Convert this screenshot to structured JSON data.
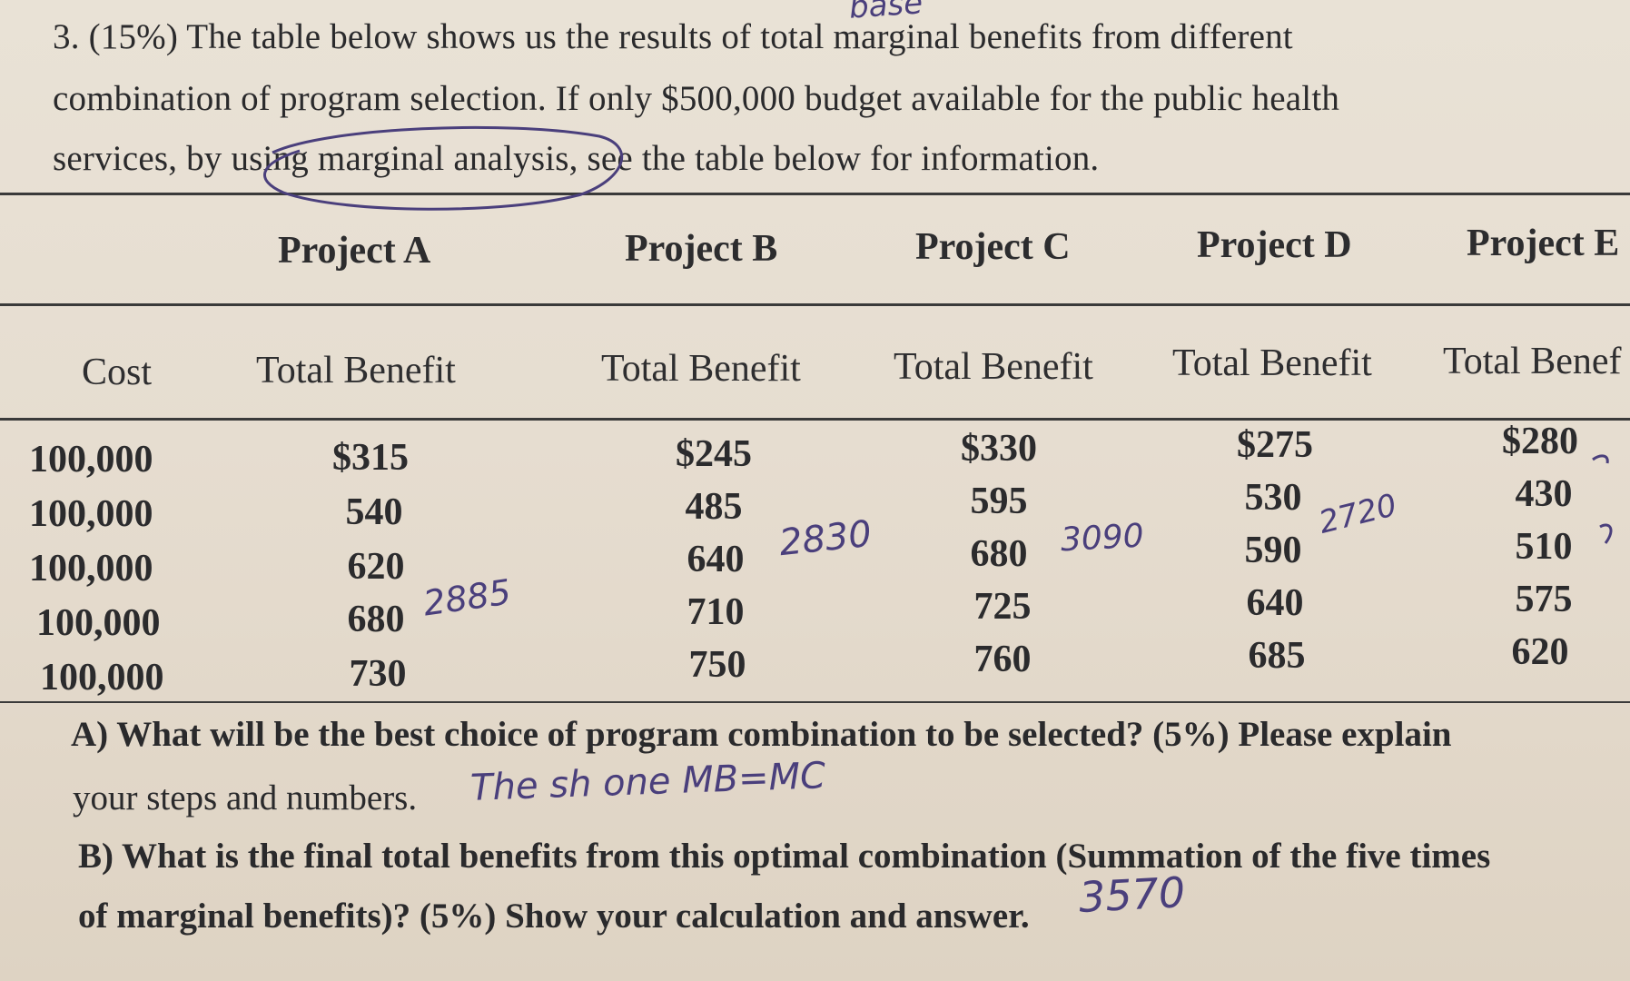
{
  "problem": {
    "line1": "3. (15%) The table below shows us the results of total marginal benefits from different",
    "line2": "combination of program selection. If only $500,000 budget available for the public health",
    "line3": "services, by using marginal analysis, see the table below for information."
  },
  "table": {
    "projects": [
      "Project A",
      "Project B",
      "Project C",
      "Project D",
      "Project E"
    ],
    "cost_header": "Cost",
    "benefit_header": "Total Benefit",
    "benefit_header_cut": "Total Benef",
    "costs": [
      "100,000",
      "100,000",
      "100,000",
      "100,000",
      "100,000"
    ],
    "columns": [
      [
        "$315",
        "540",
        "620",
        "680",
        "730"
      ],
      [
        "$245",
        "485",
        "640",
        "710",
        "750"
      ],
      [
        "$330",
        "595",
        "680",
        "725",
        "760"
      ],
      [
        "$275",
        "530",
        "590",
        "640",
        "685"
      ],
      [
        "$280",
        "430",
        "510",
        "575",
        "620"
      ]
    ]
  },
  "handwriting": {
    "top_scribble": "base",
    "sum_a": "2885",
    "sum_b": "2830",
    "sum_c": "3090",
    "sum_d": "2720",
    "answer_a": "The sh one   MB=MC",
    "answer_b": "3570"
  },
  "questions": {
    "a_line1": "A) What will be the best choice of program combination to be selected? (5%) Please explain",
    "a_line2": "your steps and numbers.",
    "b_line1": "B) What is the final total benefits from this optimal combination (Summation of the five times",
    "b_line2": "of marginal benefits)? (5%) Show your calculation and answer."
  }
}
